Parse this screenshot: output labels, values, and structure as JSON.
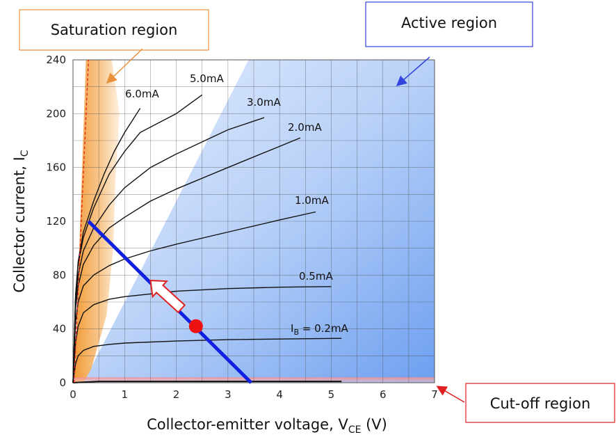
{
  "chart_data": {
    "type": "line",
    "title": "",
    "xlabel": "Collector-emitter voltage, V",
    "xlabel_sub": "CE",
    "xlabel_unit": " (V)",
    "ylabel": "Collector current, I",
    "ylabel_sub": "C",
    "xlim": [
      0,
      7
    ],
    "ylim": [
      0,
      240
    ],
    "x_ticks": [
      "0",
      "1",
      "2",
      "3",
      "4",
      "5",
      "6",
      "7"
    ],
    "y_ticks": [
      "0",
      "40",
      "80",
      "120",
      "160",
      "200",
      "240"
    ],
    "grid": true,
    "regions": {
      "saturation": "Saturation region",
      "active": "Active region",
      "cutoff": "Cut-off region"
    },
    "series": [
      {
        "name": "I_B = 0.2mA",
        "label_main": "I",
        "label_sub": "B",
        "label_rest": " = 0.2mA",
        "x": [
          0.0,
          0.05,
          0.1,
          0.2,
          0.4,
          0.7,
          1.0,
          2.0,
          3.0,
          4.0,
          5.2
        ],
        "y": [
          0,
          14,
          20,
          24,
          27,
          28.5,
          29.5,
          31,
          32,
          32.5,
          33
        ]
      },
      {
        "name": "0.5mA",
        "x": [
          0.0,
          0.05,
          0.1,
          0.2,
          0.4,
          0.7,
          1.0,
          1.5,
          2.0,
          3.0,
          4.0,
          5.0
        ],
        "y": [
          0,
          30,
          42,
          52,
          58,
          62,
          64,
          66,
          68,
          70,
          71,
          71.5
        ]
      },
      {
        "name": "1.0mA",
        "x": [
          0.0,
          0.05,
          0.1,
          0.2,
          0.4,
          0.7,
          1.0,
          1.5,
          2.0,
          3.0,
          4.0,
          4.7
        ],
        "y": [
          0,
          45,
          60,
          72,
          80,
          87,
          92,
          98,
          103,
          112,
          121,
          127
        ]
      },
      {
        "name": "2.0mA",
        "x": [
          0.0,
          0.05,
          0.1,
          0.2,
          0.4,
          0.7,
          1.0,
          1.5,
          2.0,
          3.0,
          4.4
        ],
        "y": [
          0,
          55,
          72,
          88,
          102,
          115,
          123,
          135,
          144,
          160,
          182
        ]
      },
      {
        "name": "3.0mA",
        "x": [
          0.0,
          0.05,
          0.1,
          0.2,
          0.4,
          0.7,
          1.0,
          1.5,
          2.0,
          3.0,
          3.7
        ],
        "y": [
          0,
          60,
          80,
          98,
          115,
          132,
          145,
          160,
          170,
          188,
          197
        ]
      },
      {
        "name": "5.0mA",
        "x": [
          0.0,
          0.05,
          0.1,
          0.2,
          0.4,
          0.7,
          1.0,
          1.3,
          2.0,
          2.5
        ],
        "y": [
          0,
          65,
          88,
          108,
          130,
          155,
          172,
          186,
          200,
          214
        ]
      },
      {
        "name": "6.0mA",
        "x": [
          0.0,
          0.05,
          0.1,
          0.2,
          0.4,
          0.6,
          0.8,
          1.0,
          1.3
        ],
        "y": [
          0,
          65,
          90,
          112,
          135,
          155,
          172,
          186,
          204
        ]
      }
    ],
    "load_line": {
      "x": [
        0.3,
        3.45
      ],
      "y": [
        120,
        0
      ]
    },
    "operating_point": {
      "x": 2.38,
      "y": 42
    },
    "colors": {
      "saturation": "#f4a340",
      "active_light": "#dbe8fb",
      "active_dark": "#6a9ef0",
      "cutoff": "#f07070",
      "load_line": "#1020e0",
      "operating_point": "#ee1111",
      "saturation_box": "#e8913a",
      "active_box": "#3344dd",
      "cutoff_box": "#e02020"
    }
  }
}
